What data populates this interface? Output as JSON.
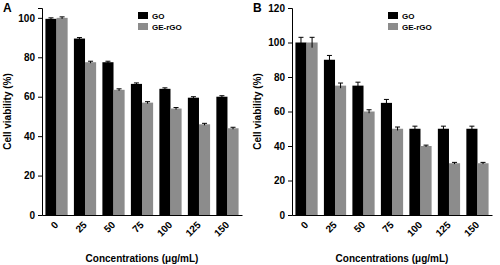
{
  "chart_data": [
    {
      "type": "bar",
      "title": "A",
      "x_label": "Concentrations (μg/mL)",
      "y_label": "Cell viability (%)",
      "categories": [
        "0",
        "25",
        "50",
        "75",
        "100",
        "125",
        "150"
      ],
      "series": [
        {
          "name": "GO",
          "color": "#000000",
          "values": [
            99.5,
            89.5,
            77.5,
            66.5,
            64,
            59.5,
            60
          ],
          "errors": [
            0.5,
            0.5,
            0.5,
            0.5,
            0.5,
            0.5,
            0.5
          ]
        },
        {
          "name": "GE-rGO",
          "color": "#8c8c8c",
          "values": [
            100,
            77.5,
            63.5,
            57,
            54,
            46,
            44
          ],
          "errors": [
            0.5,
            0.5,
            0.5,
            0.5,
            0.5,
            0.5,
            0.5
          ]
        }
      ],
      "ylim": [
        0,
        105
      ],
      "yticks": [
        0,
        20,
        40,
        60,
        80,
        100
      ],
      "legend": "top"
    },
    {
      "type": "bar",
      "title": "B",
      "x_label": "Concentrations (μg/mL)",
      "y_label": "Cell viability (%)",
      "categories": [
        "0",
        "25",
        "50",
        "75",
        "100",
        "125",
        "150"
      ],
      "series": [
        {
          "name": "GO",
          "color": "#000000",
          "values": [
            100,
            90,
            75,
            65,
            50,
            50,
            50
          ],
          "errors": [
            3,
            2.5,
            2,
            2,
            1.5,
            1.5,
            1.5
          ]
        },
        {
          "name": "GE-rGO",
          "color": "#8c8c8c",
          "values": [
            100,
            75,
            60,
            50,
            40,
            30,
            30
          ],
          "errors": [
            3,
            1.5,
            1,
            1,
            0.5,
            0.5,
            0.5
          ]
        }
      ],
      "ylim": [
        0,
        120
      ],
      "yticks": [
        0,
        20,
        40,
        60,
        80,
        100,
        120
      ],
      "legend": "top"
    }
  ]
}
